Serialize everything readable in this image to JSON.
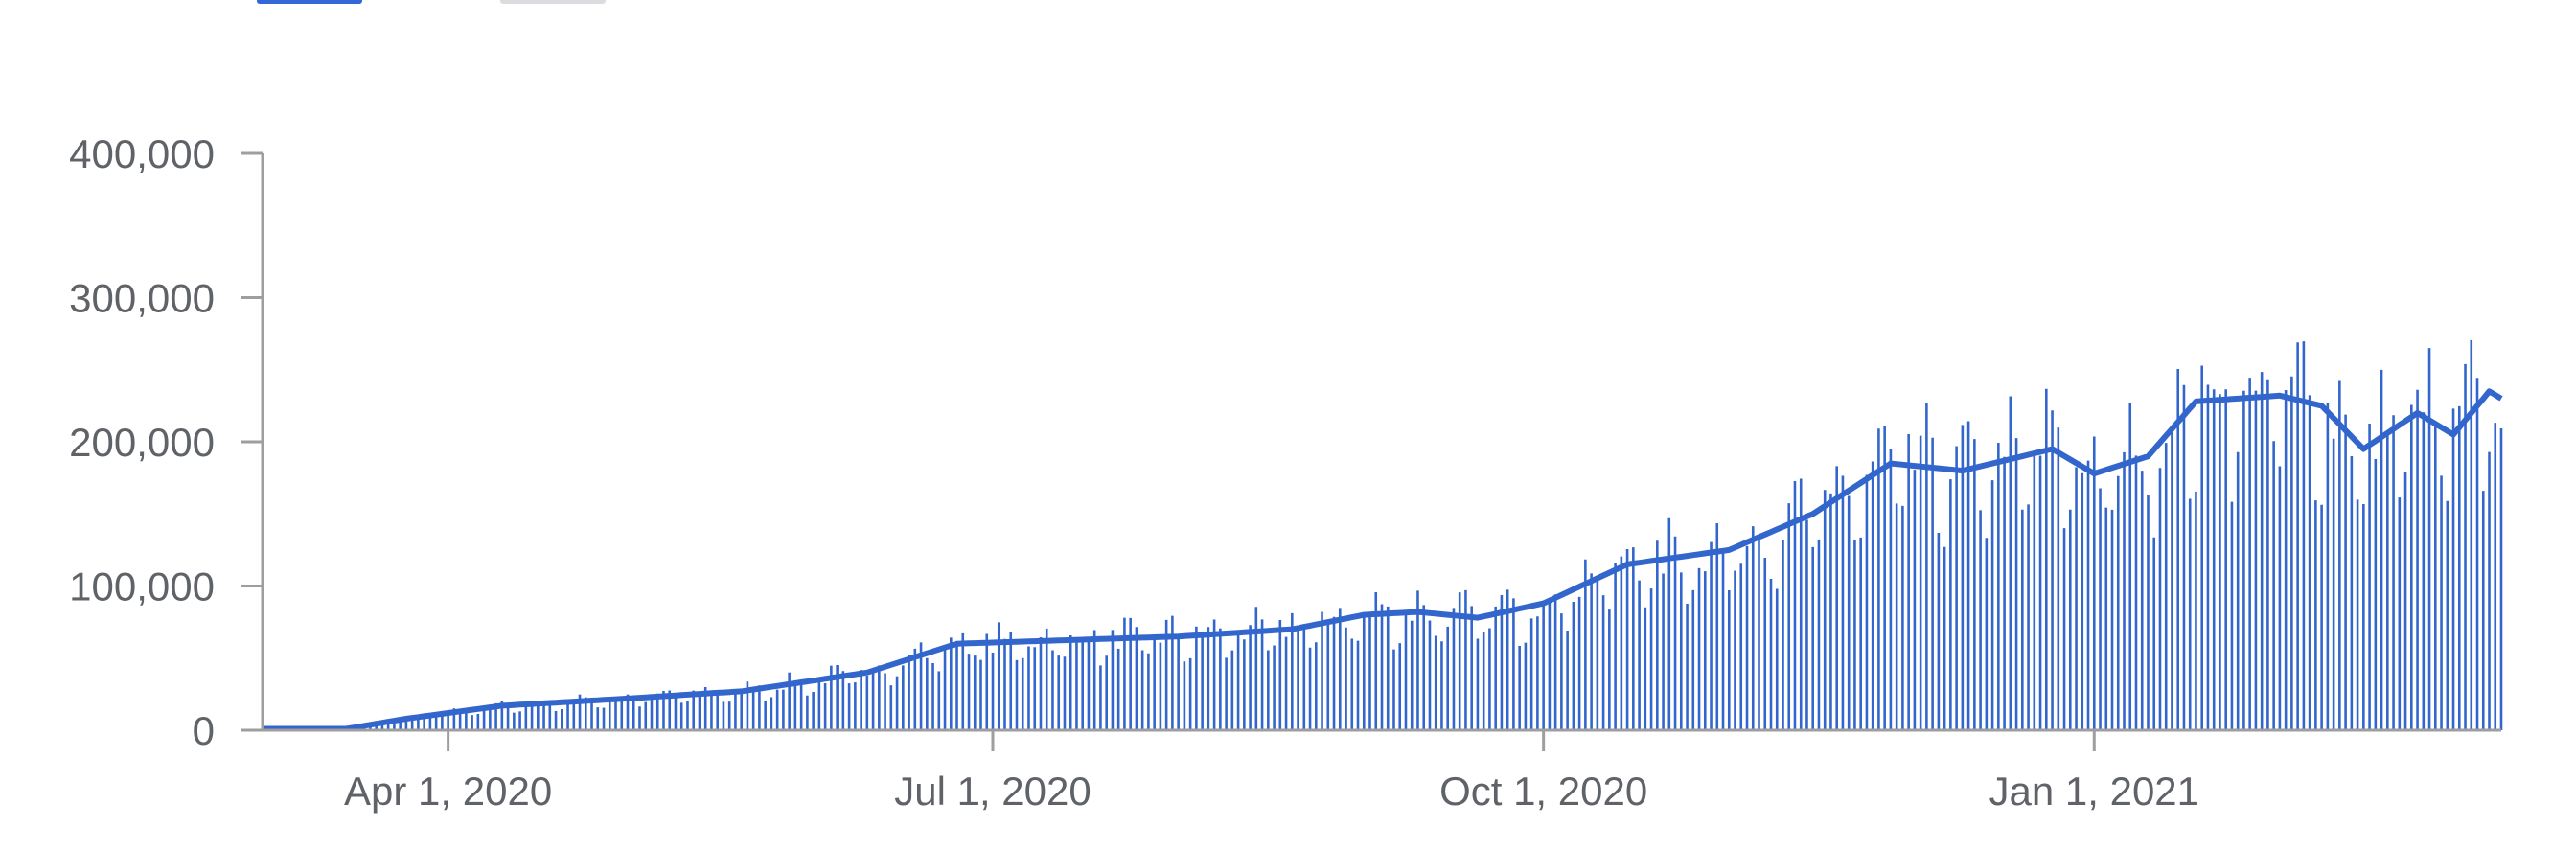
{
  "colors": {
    "bar": "#3366cc",
    "line": "#3366cc",
    "axis": "#9e9e9e",
    "text": "#5f6368",
    "tab_active": "#3367d6",
    "tab_inactive": "#dadce0"
  },
  "chart_data": {
    "type": "bar",
    "title": "",
    "xlabel": "",
    "ylabel": "",
    "ylim": [
      0,
      400000
    ],
    "grid": false,
    "yticks": [
      {
        "value": 0,
        "label": "0"
      },
      {
        "value": 100000,
        "label": "100,000"
      },
      {
        "value": 200000,
        "label": "200,000"
      },
      {
        "value": 300000,
        "label": "300,000"
      },
      {
        "value": 400000,
        "label": "400,000"
      }
    ],
    "xticks": [
      {
        "date": "2020-04-01",
        "label": "Apr 1, 2020"
      },
      {
        "date": "2020-07-01",
        "label": "Jul 1, 2020"
      },
      {
        "date": "2020-10-01",
        "label": "Oct 1, 2020"
      },
      {
        "date": "2021-01-01",
        "label": "Jan 1, 2021"
      }
    ],
    "x_range": [
      "2020-03-01",
      "2021-03-10"
    ],
    "series": [
      {
        "kind": "bar",
        "interpolated": true,
        "x_knots": [
          "2020-03-01",
          "2020-03-08",
          "2020-03-15",
          "2020-03-25",
          "2020-04-10",
          "2020-05-01",
          "2020-05-20",
          "2020-06-10",
          "2020-06-25",
          "2020-07-10",
          "2020-08-01",
          "2020-08-20",
          "2020-09-01",
          "2020-09-10",
          "2020-09-20",
          "2020-10-01",
          "2020-10-15",
          "2020-11-01",
          "2020-11-15",
          "2020-11-28",
          "2020-12-10",
          "2020-12-25",
          "2021-01-01",
          "2021-01-10",
          "2021-01-18",
          "2021-02-01",
          "2021-02-08",
          "2021-02-15",
          "2021-02-24",
          "2021-03-02",
          "2021-03-08",
          "2021-03-10"
        ],
        "y_knots": [
          1000,
          1000,
          1000,
          8000,
          17000,
          22000,
          27000,
          40000,
          60000,
          62000,
          65000,
          70000,
          80000,
          82000,
          78000,
          88000,
          115000,
          125000,
          150000,
          185000,
          180000,
          195000,
          178000,
          190000,
          228000,
          232000,
          225000,
          195000,
          220000,
          205000,
          235000,
          230000
        ]
      },
      {
        "kind": "line",
        "interpolated": true,
        "x_knots": [
          "2020-03-01",
          "2020-03-08",
          "2020-03-15",
          "2020-03-25",
          "2020-04-10",
          "2020-05-01",
          "2020-05-20",
          "2020-06-10",
          "2020-06-25",
          "2020-07-10",
          "2020-08-01",
          "2020-08-20",
          "2020-09-01",
          "2020-09-10",
          "2020-09-20",
          "2020-10-01",
          "2020-10-15",
          "2020-11-01",
          "2020-11-15",
          "2020-11-28",
          "2020-12-10",
          "2020-12-25",
          "2021-01-01",
          "2021-01-10",
          "2021-01-18",
          "2021-02-01",
          "2021-02-08",
          "2021-02-15",
          "2021-02-24",
          "2021-03-02",
          "2021-03-08",
          "2021-03-10"
        ],
        "y_knots": [
          1000,
          1000,
          1000,
          8000,
          17000,
          22000,
          27000,
          40000,
          60000,
          62000,
          65000,
          70000,
          80000,
          82000,
          78000,
          88000,
          115000,
          125000,
          150000,
          185000,
          180000,
          195000,
          178000,
          190000,
          228000,
          232000,
          225000,
          195000,
          220000,
          205000,
          235000,
          230000
        ]
      }
    ]
  }
}
